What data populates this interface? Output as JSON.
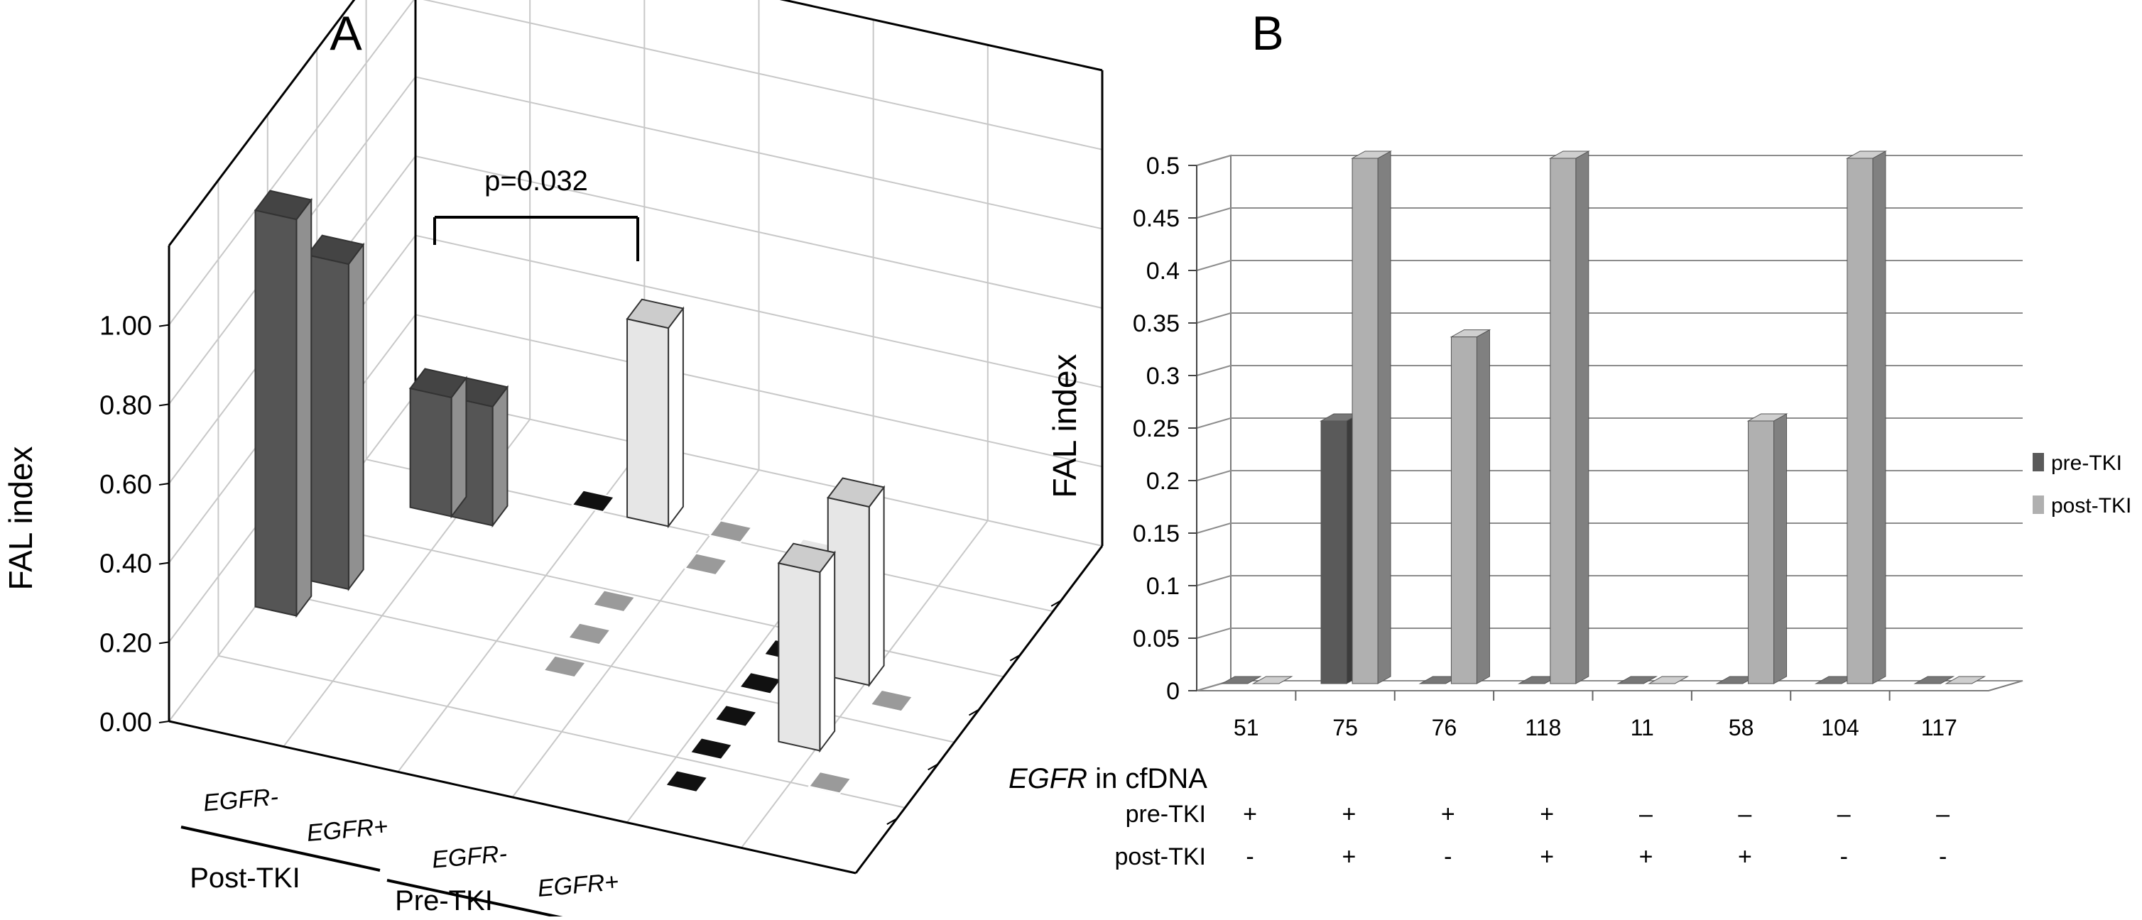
{
  "chart_data": [
    {
      "panel_label": "A",
      "type": "bar",
      "projection": "3d",
      "title": "",
      "ylabel": "FAL index",
      "yticks": [
        "0.00",
        "0.20",
        "0.40",
        "0.60",
        "0.80",
        "1.00"
      ],
      "ylim": [
        0,
        1.2
      ],
      "groups": [
        {
          "label": "Post-TKI",
          "series": [
            {
              "name": "EGFR-"
            },
            {
              "name": "EGFR+"
            }
          ]
        },
        {
          "label": "Pre-TKI",
          "series": [
            {
              "name": "EGFR-"
            },
            {
              "name": "EGFR+"
            }
          ]
        }
      ],
      "series": [
        {
          "name": "EGFR-",
          "group": "Post-TKI",
          "values": [
            1.0,
            0.82,
            0.3,
            0.3
          ]
        },
        {
          "name": "EGFR+",
          "group": "Post-TKI",
          "values": [
            0,
            0,
            0,
            0.5
          ]
        },
        {
          "name": "EGFR-",
          "group": "Pre-TKI",
          "values": [
            0,
            0,
            0,
            0,
            0,
            0
          ]
        },
        {
          "name": "EGFR+",
          "group": "Pre-TKI",
          "values": [
            0.45,
            0.45,
            0,
            0
          ]
        }
      ],
      "annotations": [
        {
          "text": "p=0.032",
          "spans": [
            "Post-TKI EGFR-",
            "Post-TKI EGFR+"
          ]
        }
      ]
    },
    {
      "panel_label": "B",
      "type": "bar",
      "projection": "3d",
      "title": "",
      "xlabel": "",
      "ylabel": "FAL index",
      "ylim": [
        0,
        0.5
      ],
      "yticks": [
        "0",
        "0.05",
        "0.1",
        "0.15",
        "0.2",
        "0.25",
        "0.3",
        "0.35",
        "0.4",
        "0.45",
        "0.5"
      ],
      "categories": [
        "51",
        "75",
        "76",
        "118",
        "11",
        "58",
        "104",
        "117"
      ],
      "series": [
        {
          "name": "pre-TKI",
          "color": "#5a5a5a",
          "values": [
            0,
            0.25,
            0,
            0,
            0,
            0,
            0,
            0
          ]
        },
        {
          "name": "post-TKI",
          "color": "#b0b0b0",
          "values": [
            0,
            0.5,
            0.33,
            0.5,
            0,
            0.25,
            0.5,
            0
          ]
        }
      ],
      "legend": {
        "position": "right",
        "entries": [
          "pre-TKI",
          "post-TKI"
        ]
      },
      "table": {
        "title_italic": "EGFR",
        "title_rest": " in cfDNA",
        "rows": [
          {
            "label": "pre-TKI",
            "values": [
              "+",
              "+",
              "+",
              "+",
              "–",
              "–",
              "–",
              "–"
            ]
          },
          {
            "label": "post-TKI",
            "values": [
              "-",
              "+",
              "-",
              "+",
              "+",
              "+",
              "-",
              "-"
            ]
          }
        ]
      }
    }
  ]
}
